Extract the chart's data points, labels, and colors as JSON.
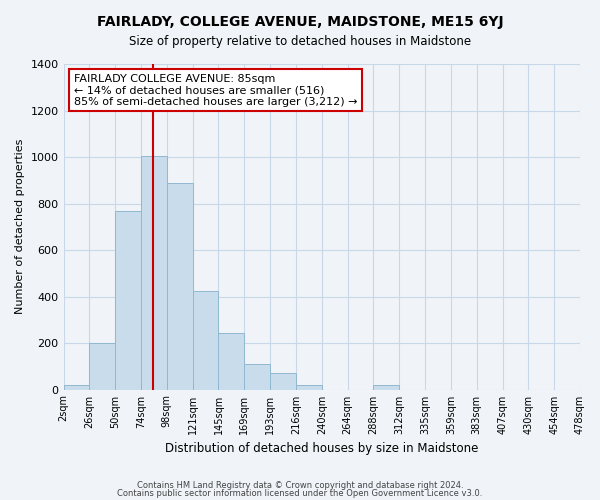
{
  "title": "FAIRLADY, COLLEGE AVENUE, MAIDSTONE, ME15 6YJ",
  "subtitle": "Size of property relative to detached houses in Maidstone",
  "xlabel": "Distribution of detached houses by size in Maidstone",
  "ylabel": "Number of detached properties",
  "bin_labels": [
    "2sqm",
    "26sqm",
    "50sqm",
    "74sqm",
    "98sqm",
    "121sqm",
    "145sqm",
    "169sqm",
    "193sqm",
    "216sqm",
    "240sqm",
    "264sqm",
    "288sqm",
    "312sqm",
    "335sqm",
    "359sqm",
    "383sqm",
    "407sqm",
    "430sqm",
    "454sqm",
    "478sqm"
  ],
  "bar_values": [
    20,
    200,
    770,
    1005,
    890,
    425,
    245,
    110,
    70,
    20,
    0,
    0,
    20,
    0,
    0,
    0,
    0,
    0,
    0,
    0
  ],
  "bar_color": "#c8dcec",
  "bar_edge_color": "#90b8d0",
  "vline_color": "#cc0000",
  "annotation_text": "FAIRLADY COLLEGE AVENUE: 85sqm\n← 14% of detached houses are smaller (516)\n85% of semi-detached houses are larger (3,212) →",
  "annotation_box_color": "white",
  "annotation_box_edge": "#cc0000",
  "ylim": [
    0,
    1400
  ],
  "yticks": [
    0,
    200,
    400,
    600,
    800,
    1000,
    1200,
    1400
  ],
  "grid_color": "#c8d8e8",
  "footnote1": "Contains HM Land Registry data © Crown copyright and database right 2024.",
  "footnote2": "Contains public sector information licensed under the Open Government Licence v3.0.",
  "bg_color": "#f0f4f8"
}
